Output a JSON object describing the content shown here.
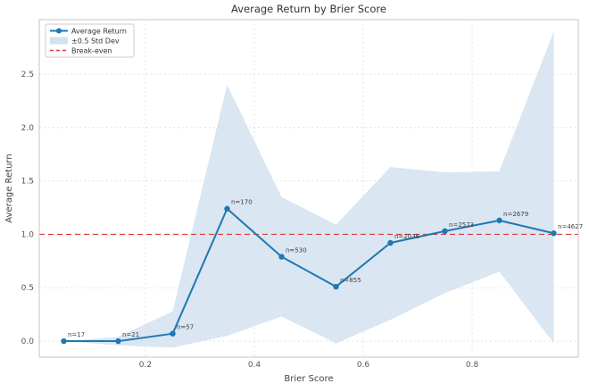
{
  "figure": {
    "title": "Average Return by Brier Score",
    "xlabel": "Brier Score",
    "ylabel": "Average Return"
  },
  "legend": {
    "position": "upper-left",
    "items": [
      {
        "label": "Average Return",
        "type": "line-marker",
        "color": "#1f77b4"
      },
      {
        "label": "±0.5 Std Dev",
        "type": "patch",
        "color": "#d3e2ef"
      },
      {
        "label": "Break-even",
        "type": "dashed-line",
        "color": "#e03b3b"
      }
    ]
  },
  "chart_data": {
    "type": "line",
    "title": "Average Return by Brier Score",
    "xlabel": "Brier Score",
    "ylabel": "Average Return",
    "x": [
      0.05,
      0.15,
      0.25,
      0.35,
      0.45,
      0.55,
      0.65,
      0.75,
      0.85,
      0.95
    ],
    "series": [
      {
        "name": "Average Return",
        "values": [
          0.0,
          0.0,
          0.07,
          1.24,
          0.79,
          0.51,
          0.92,
          1.03,
          1.13,
          1.01
        ]
      },
      {
        "name": "band upper (+0.5 std dev)",
        "values": [
          0.0,
          0.04,
          0.28,
          2.4,
          1.35,
          1.09,
          1.63,
          1.58,
          1.59,
          2.9
        ]
      },
      {
        "name": "band lower (-0.5 std dev)",
        "values": [
          0.0,
          -0.04,
          -0.06,
          0.05,
          0.23,
          -0.02,
          0.2,
          0.45,
          0.65,
          -0.02
        ]
      }
    ],
    "point_labels": [
      "n=17",
      "n=21",
      "n=57",
      "n=170",
      "n=530",
      "n=855",
      "n=2036",
      "n=2573",
      "n=2679",
      "n=4627"
    ],
    "break_even_y": 1.0,
    "xticks": [
      "0.2",
      "0.4",
      "0.6",
      "0.8"
    ],
    "xtick_values": [
      0.2,
      0.4,
      0.6,
      0.8
    ],
    "yticks": [
      "0.0",
      "0.5",
      "1.0",
      "1.5",
      "2.0",
      "2.5"
    ],
    "ytick_values": [
      0.0,
      0.5,
      1.0,
      1.5,
      2.0,
      2.5
    ],
    "xlim": [
      0.005,
      0.995
    ],
    "ylim": [
      -0.15,
      3.01
    ],
    "grid": true,
    "legend_position": "upper-left",
    "colors": {
      "line": "#1f77b4",
      "band": "#d3e2ef",
      "break_even": "#e03b3b",
      "grid": "#dcdcdc",
      "spine": "#c4c4c4",
      "title_text": "#333333",
      "label_text": "#444444",
      "tick_text": "#555555",
      "annotation_text": "#3f3f3f",
      "legend_border": "#cccccc",
      "background": "#ffffff"
    }
  }
}
